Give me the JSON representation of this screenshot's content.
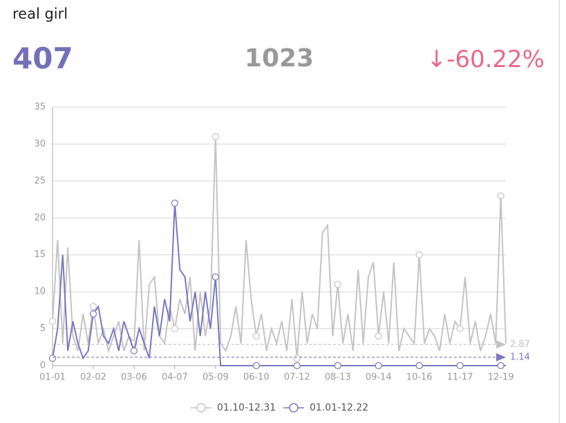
{
  "header": {
    "title": "real girl",
    "current": "407",
    "previous": "1023",
    "change": "↓-60.22%"
  },
  "chart_data": {
    "type": "line",
    "categories": [
      "01-01",
      null,
      null,
      null,
      null,
      null,
      null,
      null,
      "02-02",
      null,
      null,
      null,
      null,
      null,
      null,
      null,
      "03-06",
      null,
      null,
      null,
      null,
      null,
      null,
      null,
      "04-07",
      null,
      null,
      null,
      null,
      null,
      null,
      null,
      "05-09",
      null,
      null,
      null,
      null,
      null,
      null,
      null,
      "06-10",
      null,
      null,
      null,
      null,
      null,
      null,
      null,
      "07-12",
      null,
      null,
      null,
      null,
      null,
      null,
      null,
      "08-13",
      null,
      null,
      null,
      null,
      null,
      null,
      null,
      "09-14",
      null,
      null,
      null,
      null,
      null,
      null,
      null,
      "10-16",
      null,
      null,
      null,
      null,
      null,
      null,
      null,
      "11-17",
      null,
      null,
      null,
      null,
      null,
      null,
      null,
      "12-19",
      null
    ],
    "series": [
      {
        "name": "01.10-12.31",
        "color": "#c4c4c4",
        "average": 2.87,
        "values": [
          6,
          17,
          3,
          16,
          4,
          2,
          7,
          3,
          8,
          3,
          5,
          2,
          4,
          6,
          2,
          4,
          3,
          17,
          2,
          11,
          12,
          4,
          3,
          8,
          5,
          9,
          7,
          12,
          2,
          10,
          4,
          8,
          31,
          3,
          2,
          4,
          8,
          3,
          17,
          9,
          4,
          7,
          2,
          5,
          3,
          6,
          2,
          9,
          1,
          10,
          3,
          7,
          5,
          18,
          19,
          4,
          11,
          3,
          7,
          2,
          13,
          3,
          12,
          14,
          4,
          10,
          3,
          14,
          2,
          5,
          4,
          3,
          15,
          3,
          5,
          4,
          2,
          7,
          3,
          6,
          5,
          12,
          3,
          6,
          2,
          4,
          7,
          3,
          23,
          3
        ]
      },
      {
        "name": "01.01-12.22",
        "color": "#7b78be",
        "average": 1.14,
        "values": [
          1,
          5,
          15,
          2,
          6,
          3,
          1,
          2,
          7,
          8,
          4,
          3,
          5,
          2,
          6,
          4,
          2,
          5,
          3,
          1,
          8,
          4,
          9,
          6,
          22,
          13,
          12,
          6,
          10,
          4,
          10,
          5,
          12,
          0,
          0,
          0,
          0,
          0,
          0,
          0,
          0,
          0,
          0,
          0,
          0,
          0,
          0,
          0,
          0,
          0,
          0,
          0,
          0,
          0,
          0,
          0,
          0,
          0,
          0,
          0,
          0,
          0,
          0,
          0,
          0,
          0,
          0,
          0,
          0,
          0,
          0,
          0,
          0,
          0,
          0,
          0,
          0,
          0,
          0,
          0,
          0,
          0,
          0,
          0,
          0,
          0,
          0,
          0,
          0,
          0
        ]
      }
    ],
    "ylim": [
      0,
      35
    ],
    "yticks": [
      0,
      5,
      10,
      15,
      20,
      25,
      30,
      35
    ],
    "grid": true
  }
}
